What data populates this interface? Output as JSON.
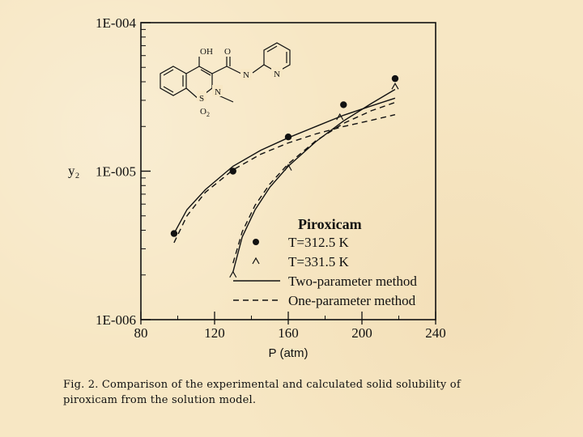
{
  "chart_data": {
    "type": "scatter",
    "xlabel": "P (atm)",
    "ylabel": "y₂",
    "xlim": [
      80,
      240
    ],
    "ylim": [
      1e-06,
      0.0001
    ],
    "y_scale": "log",
    "x_ticks": [
      "80",
      "120",
      "160",
      "200",
      "240"
    ],
    "y_ticks": [
      "1E-006",
      "1E-005",
      "1E-004"
    ],
    "legend": {
      "title": "Piroxicam",
      "position": "bottom-right",
      "entries": [
        {
          "label": "T=312.5 K",
          "marker": "filled-circle"
        },
        {
          "label": "T=331.5 K",
          "marker": "caret"
        },
        {
          "label": "Two-parameter method",
          "line": "solid"
        },
        {
          "label": "One-parameter method",
          "line": "dashed"
        }
      ]
    },
    "series": [
      {
        "name": "T=312.5 K",
        "points": [
          [
            98,
            3.8e-06
          ],
          [
            130,
            1e-05
          ],
          [
            160,
            1.7e-05
          ],
          [
            190,
            2.8e-05
          ],
          [
            218,
            4.2e-05
          ]
        ]
      },
      {
        "name": "T=331.5 K",
        "points": [
          [
            130,
            2e-06
          ],
          [
            160,
            1.05e-05
          ],
          [
            188,
            2.3e-05
          ],
          [
            218,
            3.7e-05
          ]
        ]
      }
    ],
    "curves": [
      {
        "name": "Two-parameter method",
        "temperature": "T=312.5 K",
        "style": "solid",
        "points": [
          [
            98,
            3.8e-06
          ],
          [
            105,
            5.5e-06
          ],
          [
            115,
            7.5e-06
          ],
          [
            130,
            1.08e-05
          ],
          [
            145,
            1.38e-05
          ],
          [
            160,
            1.68e-05
          ],
          [
            175,
            2e-05
          ],
          [
            190,
            2.38e-05
          ],
          [
            205,
            2.75e-05
          ],
          [
            218,
            3.1e-05
          ]
        ]
      },
      {
        "name": "One-parameter method",
        "temperature": "T=312.5 K",
        "style": "dashed",
        "points": [
          [
            98,
            3.3e-06
          ],
          [
            105,
            5e-06
          ],
          [
            115,
            7.2e-06
          ],
          [
            130,
            1.02e-05
          ],
          [
            145,
            1.3e-05
          ],
          [
            160,
            1.55e-05
          ],
          [
            175,
            1.78e-05
          ],
          [
            190,
            2e-05
          ],
          [
            205,
            2.2e-05
          ],
          [
            218,
            2.4e-05
          ]
        ]
      },
      {
        "name": "Two-parameter method",
        "temperature": "T=331.5 K",
        "style": "solid",
        "points": [
          [
            130,
            2.1e-06
          ],
          [
            135,
            3.6e-06
          ],
          [
            142,
            5.5e-06
          ],
          [
            150,
            7.8e-06
          ],
          [
            160,
            1.08e-05
          ],
          [
            175,
            1.58e-05
          ],
          [
            190,
            2.18e-05
          ],
          [
            205,
            2.85e-05
          ],
          [
            218,
            3.55e-05
          ]
        ]
      },
      {
        "name": "One-parameter method",
        "temperature": "T=331.5 K",
        "style": "dashed",
        "points": [
          [
            130,
            2.4e-06
          ],
          [
            135,
            3.9e-06
          ],
          [
            142,
            5.9e-06
          ],
          [
            150,
            8.2e-06
          ],
          [
            160,
            1.12e-05
          ],
          [
            175,
            1.6e-05
          ],
          [
            190,
            2.1e-05
          ],
          [
            205,
            2.55e-05
          ],
          [
            218,
            2.9e-05
          ]
        ]
      }
    ]
  },
  "molecule": {
    "oh": "OH",
    "o": "O",
    "n_amide": "N",
    "n_ring": "N",
    "n_pyridine": "N",
    "s": "S",
    "o2": "O",
    "o2_sub": "2"
  },
  "caption": {
    "line1": "Fig. 2. Comparison of the experimental and calculated solid solubility of",
    "line2": "piroxicam from the solution model."
  }
}
